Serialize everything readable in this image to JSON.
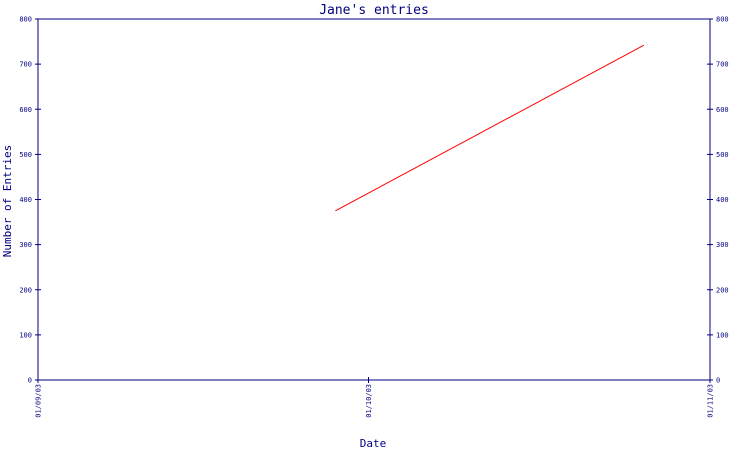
{
  "chart_data": {
    "type": "line",
    "title": "Jane's entries",
    "xlabel": "Date",
    "ylabel": "Number of Entries",
    "x_ticks": [
      "01/09/03",
      "01/10/03",
      "01/11/03"
    ],
    "y_ticks": [
      "0",
      "100",
      "200",
      "300",
      "400",
      "500",
      "600",
      "700",
      "800"
    ],
    "ylim": [
      0,
      800
    ],
    "xlim": [
      "01/09/03",
      "01/11/03"
    ],
    "grid": false,
    "series": [
      {
        "color": "#ff0000",
        "points": [
          {
            "x": "2003-09-28",
            "y": 375
          },
          {
            "x": "2003-10-26",
            "y": 742
          }
        ]
      }
    ],
    "colors": {
      "axis": "#000080",
      "text": "#000080",
      "series": "#ff0000"
    }
  }
}
